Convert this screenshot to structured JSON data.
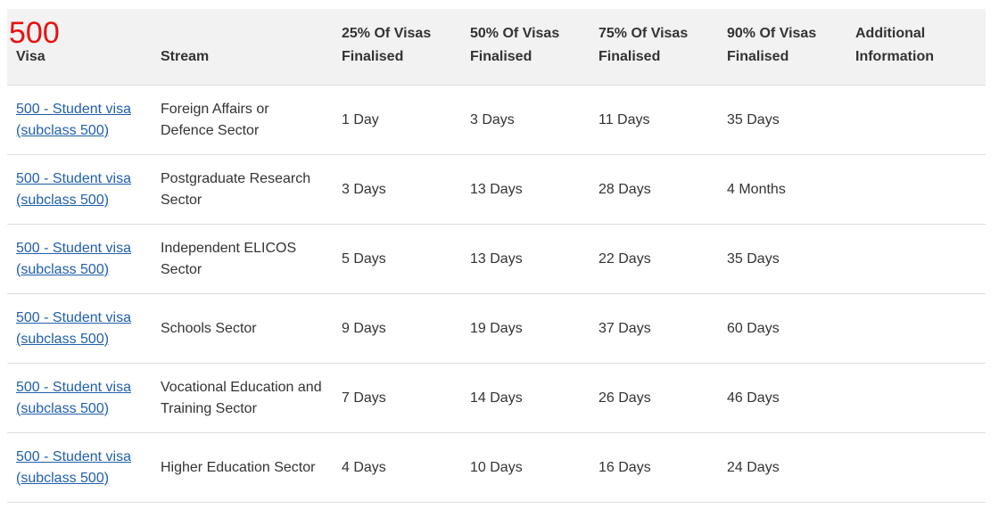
{
  "badge": "500",
  "table": {
    "header": [
      "Visa",
      "Stream",
      "25% Of Visas Finalised",
      "50% Of Visas Finalised",
      "75% Of Visas Finalised",
      "90% Of Visas Finalised",
      "Additional Information"
    ],
    "rows": [
      [
        "500 - Student visa (subclass 500)",
        "Foreign Affairs or Defence Sector",
        "1 Day",
        "3 Days",
        "11 Days",
        "35 Days"
      ],
      [
        "500 - Student visa (subclass 500)",
        "Postgraduate Research Sector",
        "3 Days",
        "13 Days",
        "28 Days",
        "4 Months"
      ],
      [
        "500 - Student visa (subclass 500)",
        "Independent ELICOS Sector",
        "5 Days",
        "13 Days",
        "22 Days",
        "35 Days"
      ],
      [
        "500 - Student visa (subclass 500)",
        "Schools Sector",
        "9 Days",
        "19 Days",
        "37 Days",
        "60 Days"
      ],
      [
        "500 - Student visa (subclass 500)",
        "Vocational Education and Training Sector",
        "7 Days",
        "14 Days",
        "26 Days",
        "46 Days"
      ],
      [
        "500 - Student visa (subclass 500)",
        "Higher Education Sector",
        "4 Days",
        "10 Days",
        "16 Days",
        "24 Days"
      ]
    ]
  }
}
